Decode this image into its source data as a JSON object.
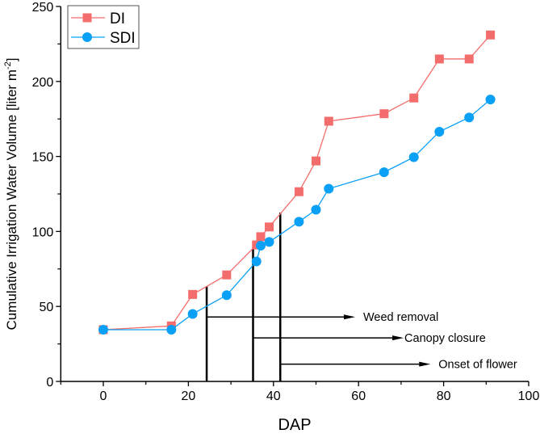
{
  "chart_data": {
    "type": "line",
    "title": "",
    "xlabel": "DAP",
    "ylabel": {
      "text": "Cumulative Irrigation Water Volume [liter m",
      "superscript": "-2",
      "suffix": "]"
    },
    "xlim": [
      -10,
      100
    ],
    "ylim": [
      0,
      250
    ],
    "xticks": [
      0,
      20,
      40,
      60,
      80,
      100
    ],
    "yticks": [
      0,
      50,
      100,
      150,
      200,
      250
    ],
    "grid": false,
    "legend_position": "top-left",
    "series": [
      {
        "name": "DI",
        "color": "#f46d6d",
        "marker": "square",
        "x": [
          0,
          16,
          21,
          29,
          36,
          37,
          39,
          46,
          50,
          53,
          66,
          73,
          79,
          86,
          91
        ],
        "y": [
          34.5,
          37,
          58,
          71,
          91,
          96.5,
          103,
          126.5,
          147,
          173.5,
          178.5,
          189,
          215,
          215,
          231
        ]
      },
      {
        "name": "SDI",
        "color": "#0aa0f5",
        "marker": "circle",
        "x": [
          0,
          16,
          21,
          29,
          36,
          37,
          39,
          46,
          50,
          53,
          66,
          73,
          79,
          86,
          91
        ],
        "y": [
          34.5,
          34.5,
          45,
          57.5,
          80,
          90.5,
          93,
          106.5,
          114.5,
          128.5,
          139.5,
          149.5,
          166.5,
          176,
          188
        ]
      }
    ],
    "annotations": [
      {
        "label": "Weed removal",
        "line_x": 24.3,
        "line_top": 63.5,
        "arrow_y": 43,
        "arrow_end_x": 59.2
      },
      {
        "label": "Canopy closure",
        "line_x": 35.2,
        "line_top": 89,
        "arrow_y": 29,
        "arrow_end_x": 70.6
      },
      {
        "label": "Onset of flower",
        "line_x": 41.6,
        "line_top": 112.5,
        "arrow_y": 11.5,
        "arrow_end_x": 76.9
      }
    ]
  }
}
